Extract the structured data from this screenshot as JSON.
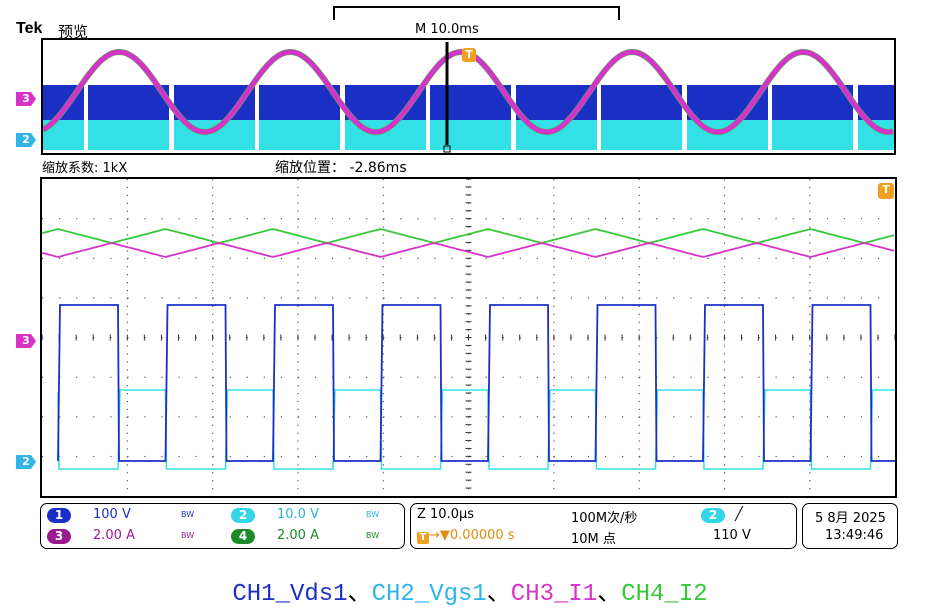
{
  "brand": {
    "logo": "Tek",
    "mode": "预览"
  },
  "overview": {
    "main_timebase": "M 10.0ms"
  },
  "zoom": {
    "factor_label": "缩放系数:",
    "factor_value": "1kX",
    "position_label": "缩放位置：",
    "position_value": "-2.86ms"
  },
  "channel_markers": {
    "ch3": "3",
    "ch2": "2",
    "trigger": "T"
  },
  "status": {
    "ch1": {
      "num": "1",
      "value": "100 V",
      "bw": "BW"
    },
    "ch2": {
      "num": "2",
      "value": "10.0 V",
      "bw": "BW"
    },
    "ch3": {
      "num": "3",
      "value": "2.00 A",
      "bw": "BW"
    },
    "ch4": {
      "num": "4",
      "value": "2.00 A",
      "bw": "BW"
    },
    "zoom_timebase": "Z 10.0μs",
    "trigger_pos": "→▼0.00000 s",
    "sample_rate": "100M次/秒",
    "record_length": "10M 点",
    "trigger_source": "2",
    "trigger_slope": "╱",
    "trigger_level": "110 V",
    "date": "5 8月 2025",
    "time": "13:49:46"
  },
  "colors": {
    "ch1": "#1a2fc4",
    "ch2": "#33e0e6",
    "ch3": "#d633c9",
    "ch4": "#36c83a"
  },
  "caption": [
    {
      "text": "CH1_Vds1",
      "color": "#1a2fc4"
    },
    {
      "text": "、",
      "color": "#000000"
    },
    {
      "text": "CH2_Vgs1",
      "color": "#2bb6e6"
    },
    {
      "text": "、",
      "color": "#000000"
    },
    {
      "text": "CH3_I1",
      "color": "#d633c9"
    },
    {
      "text": "、",
      "color": "#000000"
    },
    {
      "text": "CH4_I2",
      "color": "#36c83a"
    }
  ]
}
